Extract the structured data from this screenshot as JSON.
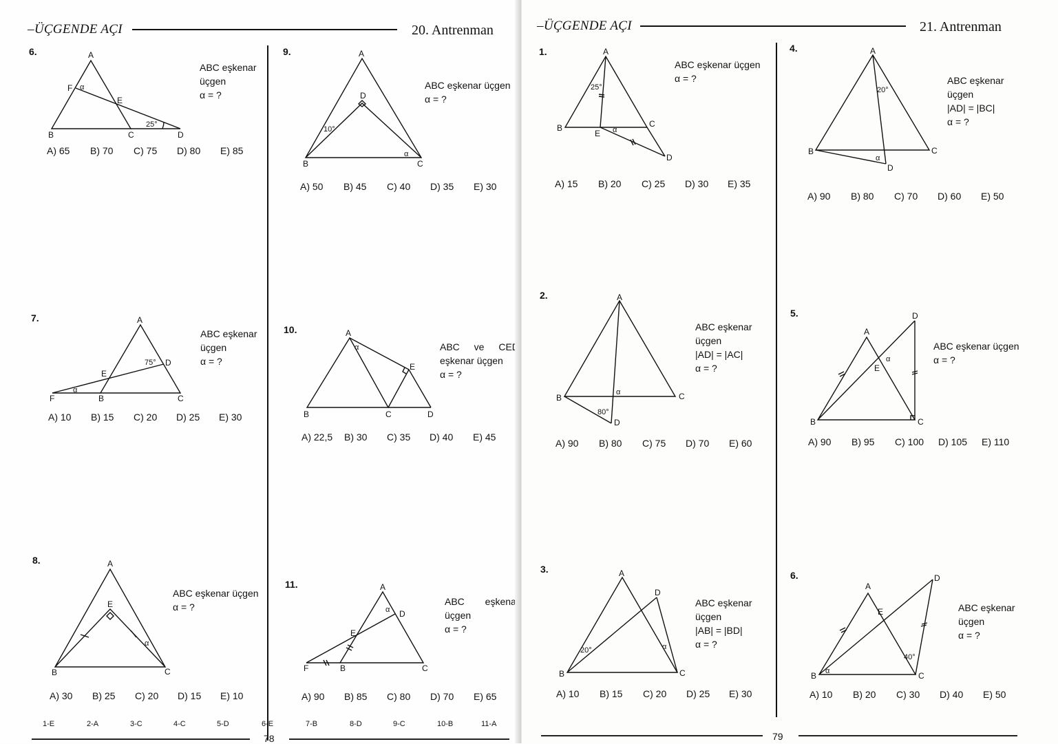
{
  "left": {
    "header": {
      "title": "ÜÇGENDE AÇI",
      "training": "20. Antrenman"
    },
    "questions": [
      {
        "num": "6.",
        "given": [
          "ABC eşkenar",
          "üçgen",
          "α = ?"
        ],
        "choices": [
          "A) 65",
          "B) 70",
          "C) 75",
          "D) 80",
          "E) 85"
        ],
        "labels": {
          "A": "A",
          "B": "B",
          "C": "C",
          "D": "D",
          "E": "E",
          "F": "F",
          "alpha": "α",
          "angle": "25°"
        }
      },
      {
        "num": "7.",
        "given": [
          "ABC eşkenar",
          "üçgen",
          "α = ?"
        ],
        "choices": [
          "A) 10",
          "B) 15",
          "C) 20",
          "D) 25",
          "E) 30"
        ],
        "labels": {
          "A": "A",
          "B": "B",
          "C": "C",
          "D": "D",
          "E": "E",
          "F": "F",
          "alpha": "α",
          "angle": "75°"
        }
      },
      {
        "num": "8.",
        "given": [
          "ABC eşkenar üçgen",
          "α = ?"
        ],
        "choices": [
          "A) 30",
          "B) 25",
          "C) 20",
          "D) 15",
          "E) 10"
        ],
        "labels": {
          "A": "A",
          "B": "B",
          "C": "C",
          "E": "E",
          "alpha": "α"
        }
      },
      {
        "num": "9.",
        "given": [
          "ABC eşkenar üçgen",
          "α = ?"
        ],
        "choices": [
          "A) 50",
          "B) 45",
          "C) 40",
          "D) 35",
          "E) 30"
        ],
        "labels": {
          "A": "A",
          "B": "B",
          "C": "C",
          "D": "D",
          "alpha": "α",
          "angle": "10°"
        }
      },
      {
        "num": "10.",
        "given": [
          "ABC ve CED",
          "eşkenar üçgen",
          "α = ?"
        ],
        "choices": [
          "A) 22,5",
          "B) 30",
          "C) 35",
          "D) 40",
          "E) 45"
        ],
        "labels": {
          "A": "A",
          "B": "B",
          "C": "C",
          "D": "D",
          "E": "E",
          "alpha": "α"
        }
      },
      {
        "num": "11.",
        "given": [
          "ABC eşkenar",
          "üçgen",
          "α = ?"
        ],
        "choices": [
          "A) 90",
          "B) 85",
          "C) 80",
          "D) 70",
          "E) 65"
        ],
        "labels": {
          "A": "A",
          "B": "B",
          "C": "C",
          "D": "D",
          "E": "E",
          "F": "F",
          "alpha": "α"
        }
      }
    ],
    "answers": [
      "1-E",
      "2-A",
      "3-C",
      "4-C",
      "5-D",
      "6-E",
      "7-B",
      "8-D",
      "9-C",
      "10-B",
      "11-A"
    ],
    "page_number": "78"
  },
  "right": {
    "header": {
      "title": "ÜÇGENDE AÇI",
      "training": "21. Antrenman"
    },
    "questions": [
      {
        "num": "1.",
        "given": [
          "ABC eşkenar üçgen",
          "α = ?"
        ],
        "choices": [
          "A) 15",
          "B) 20",
          "C) 25",
          "D) 30",
          "E) 35"
        ],
        "labels": {
          "A": "A",
          "B": "B",
          "C": "C",
          "D": "D",
          "E": "E",
          "alpha": "α",
          "angle": "25°"
        }
      },
      {
        "num": "2.",
        "given": [
          "ABC eşkenar",
          "üçgen",
          "|AD| = |AC|",
          "α = ?"
        ],
        "choices": [
          "A) 90",
          "B) 80",
          "C) 75",
          "D) 70",
          "E) 60"
        ],
        "labels": {
          "A": "A",
          "B": "B",
          "C": "C",
          "D": "D",
          "alpha": "α",
          "angle": "80°"
        }
      },
      {
        "num": "3.",
        "given": [
          "ABC eşkenar",
          "üçgen",
          "|AB| = |BD|",
          "α = ?"
        ],
        "choices": [
          "A) 10",
          "B) 15",
          "C) 20",
          "D) 25",
          "E) 30"
        ],
        "labels": {
          "A": "A",
          "B": "B",
          "C": "C",
          "D": "D",
          "alpha": "α",
          "angle": "20°"
        }
      },
      {
        "num": "4.",
        "given": [
          "ABC eşkenar",
          "üçgen",
          "|AD| = |BC|",
          "α = ?"
        ],
        "choices": [
          "A) 90",
          "B) 80",
          "C) 70",
          "D) 60",
          "E) 50"
        ],
        "labels": {
          "A": "A",
          "B": "B",
          "C": "C",
          "D": "D",
          "alpha": "α",
          "angle": "20°"
        }
      },
      {
        "num": "5.",
        "given": [
          "ABC eşkenar üçgen",
          "α = ?"
        ],
        "choices": [
          "A) 90",
          "B) 95",
          "C) 100",
          "D) 105",
          "E) 110"
        ],
        "labels": {
          "A": "A",
          "B": "B",
          "C": "C",
          "D": "D",
          "E": "E",
          "alpha": "α"
        }
      },
      {
        "num": "6.",
        "given": [
          "ABC eşkenar",
          "üçgen",
          "α = ?"
        ],
        "choices": [
          "A) 10",
          "B) 20",
          "C) 30",
          "D) 40",
          "E) 50"
        ],
        "labels": {
          "A": "A",
          "B": "B",
          "C": "C",
          "D": "D",
          "E": "E",
          "alpha": "α",
          "angle": "40°"
        }
      }
    ],
    "page_number": "79"
  }
}
